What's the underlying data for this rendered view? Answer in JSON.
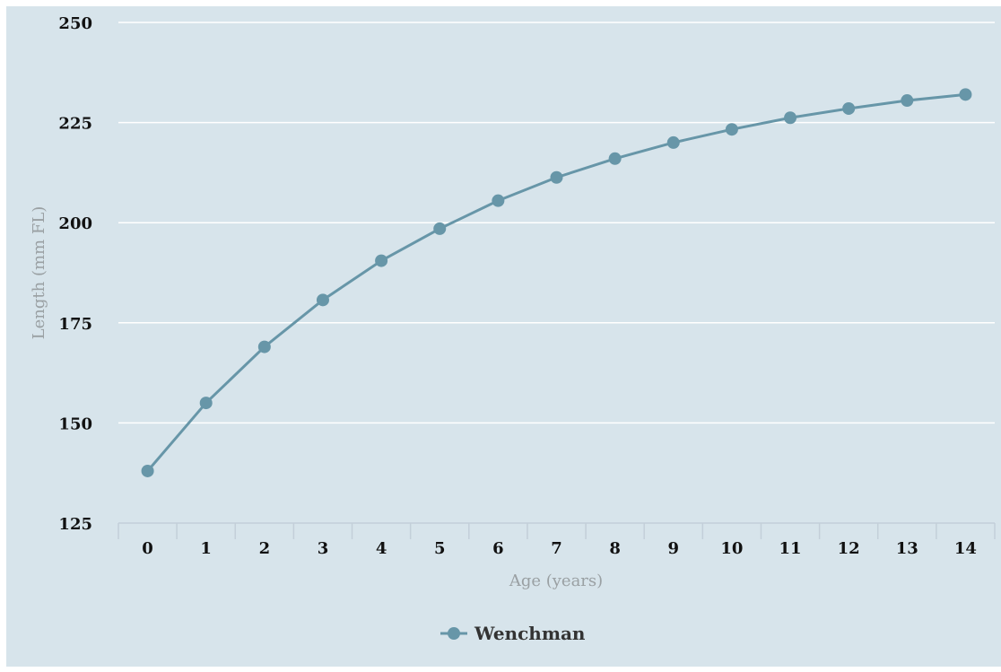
{
  "chart_data": {
    "type": "line",
    "title": "",
    "xlabel": "Age (years)",
    "ylabel": "Length (mm FL)",
    "categories": [
      "0",
      "1",
      "2",
      "3",
      "4",
      "5",
      "6",
      "7",
      "8",
      "9",
      "10",
      "11",
      "12",
      "13",
      "14"
    ],
    "series": [
      {
        "name": "Wenchman",
        "values": [
          138,
          155,
          169,
          180.7,
          190.5,
          198.5,
          205.5,
          211.3,
          216,
          220,
          223.3,
          226.2,
          228.5,
          230.5,
          232
        ]
      }
    ],
    "ylim": [
      125,
      250
    ],
    "yticks": [
      "125",
      "150",
      "175",
      "200",
      "225",
      "250"
    ],
    "grid": true,
    "legend_position": "bottom"
  },
  "colors": {
    "panel_background": "#d7e4eb",
    "series": "#6796a8",
    "gridline": "#ffffff",
    "axis_line": "#c3cfd9"
  }
}
